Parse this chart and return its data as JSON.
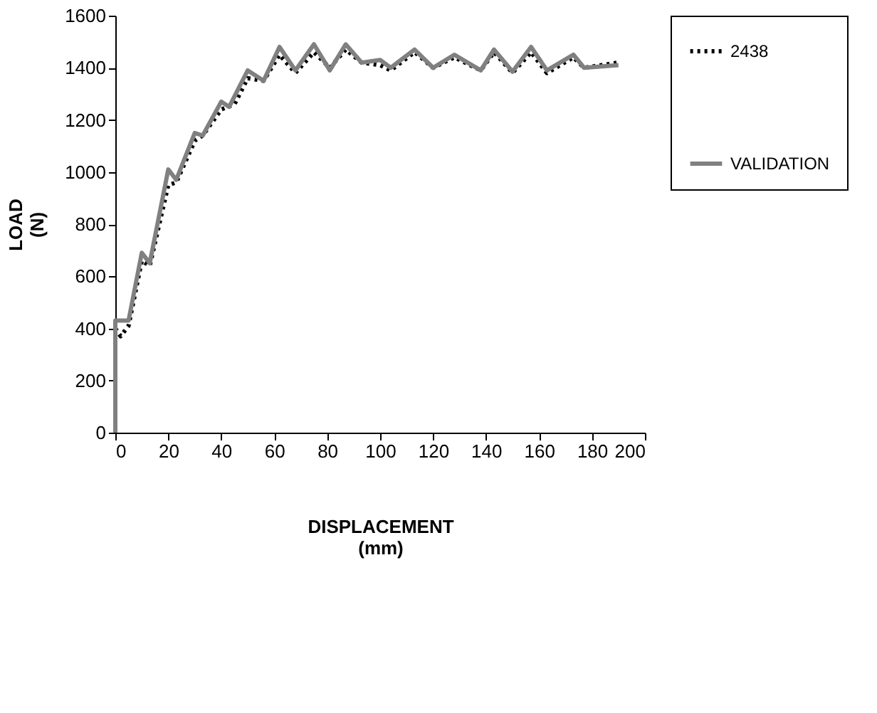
{
  "chart_data": {
    "type": "line",
    "xlabel": "DISPLACEMENT\n(mm)",
    "ylabel": "LOAD\n(N)",
    "xlim": [
      0,
      200
    ],
    "xticks": [
      0,
      20,
      40,
      60,
      80,
      100,
      120,
      140,
      160,
      180,
      200
    ],
    "ylim": [
      0,
      1600
    ],
    "yticks": [
      0,
      200,
      400,
      600,
      800,
      1000,
      1200,
      1400,
      1600
    ],
    "grid": false,
    "legend": "right",
    "marker": "none",
    "series": [
      {
        "name": "2438",
        "color": "#000000",
        "line_style": "dotted",
        "x": [
          0,
          2,
          5,
          10,
          13,
          20,
          23,
          30,
          33,
          40,
          45,
          50,
          56,
          62,
          68,
          75,
          81,
          87,
          93,
          100,
          104,
          113,
          120,
          128,
          138,
          143,
          150,
          157,
          163,
          173,
          177,
          190
        ],
        "values": [
          400,
          370,
          410,
          660,
          640,
          950,
          960,
          1120,
          1140,
          1240,
          1260,
          1360,
          1350,
          1450,
          1380,
          1460,
          1400,
          1470,
          1420,
          1410,
          1390,
          1460,
          1400,
          1440,
          1390,
          1460,
          1380,
          1460,
          1380,
          1440,
          1400,
          1420
        ]
      },
      {
        "name": "VALIDATION",
        "color": "#808080",
        "line_style": "solid",
        "x": [
          0,
          0,
          5,
          10,
          13,
          20,
          23,
          30,
          33,
          40,
          43,
          50,
          56,
          62,
          68,
          75,
          81,
          87,
          93,
          100,
          104,
          113,
          120,
          128,
          138,
          143,
          150,
          157,
          163,
          173,
          177,
          190
        ],
        "values": [
          0,
          430,
          430,
          690,
          650,
          1010,
          970,
          1150,
          1140,
          1270,
          1250,
          1390,
          1350,
          1480,
          1390,
          1490,
          1390,
          1490,
          1420,
          1430,
          1400,
          1470,
          1400,
          1450,
          1390,
          1470,
          1385,
          1480,
          1390,
          1450,
          1400,
          1410
        ]
      }
    ]
  }
}
